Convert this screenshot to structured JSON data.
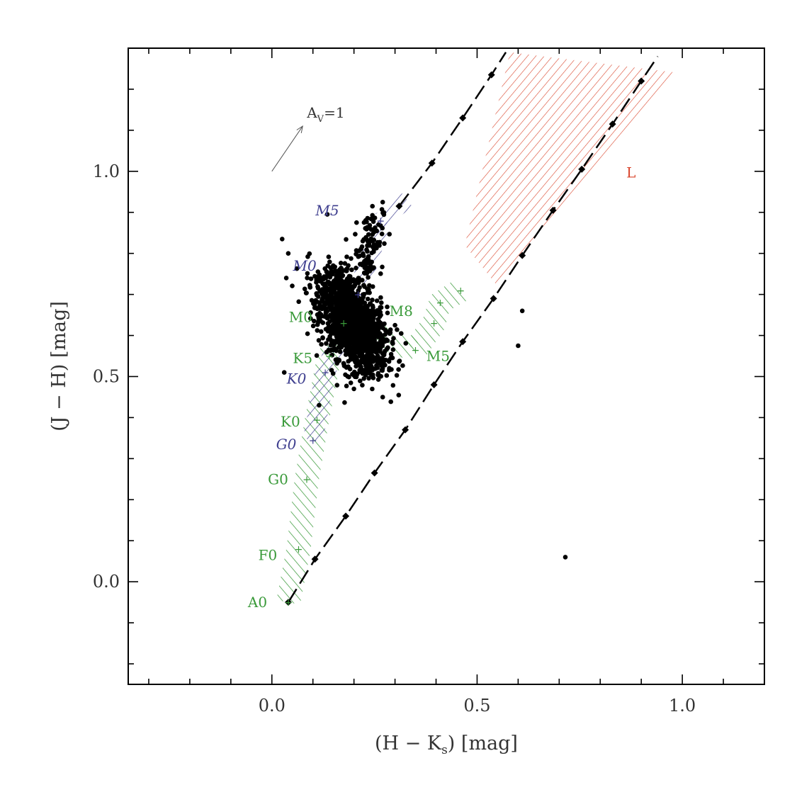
{
  "chart_data": {
    "type": "scatter",
    "xlabel_main": "(H − K",
    "xlabel_sub": "s",
    "xlabel_tail": ") [mag]",
    "ylabel": "(J − H) [mag]",
    "xlim": [
      -0.35,
      1.2
    ],
    "ylim": [
      -0.25,
      1.3
    ],
    "x_ticks": [
      0.0,
      0.5,
      1.0
    ],
    "x_tick_labels": [
      "0.0",
      "0.5",
      "1.0"
    ],
    "y_ticks": [
      0.0,
      0.5,
      1.0
    ],
    "y_tick_labels": [
      "0.0",
      "0.5",
      "1.0"
    ],
    "grid": false,
    "colors": {
      "points": "#000000",
      "dwarf": "#3a9a3a",
      "giant": "#3f3f8f",
      "l_dwarf": "#d9442b",
      "reddening": "#000000",
      "axis": "#000000",
      "text": "#333333"
    },
    "reddening_vector": {
      "label_main": "A",
      "label_sub": "V",
      "label_tail": "=1",
      "from": [
        0.0,
        1.0
      ],
      "to": [
        0.075,
        1.11
      ]
    },
    "reddening_lines": [
      {
        "name": "",
        "points": [
          [
            0.04,
            -0.05
          ],
          [
            0.105,
            0.055
          ],
          [
            0.18,
            0.16
          ],
          [
            0.25,
            0.265
          ],
          [
            0.325,
            0.37
          ],
          [
            0.395,
            0.48
          ],
          [
            0.465,
            0.585
          ],
          [
            0.54,
            0.69
          ],
          [
            0.61,
            0.795
          ],
          [
            0.685,
            0.905
          ],
          [
            0.755,
            1.005
          ],
          [
            0.83,
            1.115
          ],
          [
            0.9,
            1.22
          ],
          [
            0.94,
            1.28
          ]
        ]
      },
      {
        "name": "",
        "points": [
          [
            0.31,
            0.915
          ],
          [
            0.39,
            1.02
          ],
          [
            0.465,
            1.13
          ],
          [
            0.535,
            1.235
          ],
          [
            0.57,
            1.29
          ]
        ]
      }
    ],
    "dwarf_sequence": [
      {
        "label": "A0",
        "x": 0.04,
        "y": -0.05
      },
      {
        "label": "F0",
        "x": 0.065,
        "y": 0.08
      },
      {
        "label": "G0",
        "x": 0.085,
        "y": 0.25
      },
      {
        "label": "K0",
        "x": 0.11,
        "y": 0.395
      },
      {
        "label": "K5",
        "x": 0.14,
        "y": 0.55
      },
      {
        "label": "M0",
        "x": 0.175,
        "y": 0.63
      },
      {
        "label": "M5",
        "x": 0.35,
        "y": 0.565
      },
      {
        "label": "",
        "x": 0.395,
        "y": 0.63
      },
      {
        "label": "M8",
        "x": 0.41,
        "y": 0.68
      },
      {
        "label": "",
        "x": 0.46,
        "y": 0.71
      }
    ],
    "giant_sequence": [
      {
        "label": "G0",
        "x": 0.1,
        "y": 0.345
      },
      {
        "label": "K0",
        "x": 0.13,
        "y": 0.51
      },
      {
        "label": "M0",
        "x": 0.21,
        "y": 0.7
      },
      {
        "label": "M5",
        "x": 0.265,
        "y": 0.88
      }
    ],
    "l_dwarf_region": {
      "label": "L",
      "polygon": [
        [
          0.47,
          0.82
        ],
        [
          0.58,
          1.29
        ],
        [
          0.99,
          1.24
        ],
        [
          0.55,
          0.72
        ]
      ]
    },
    "isolated_points": [
      [
        0.025,
        0.835
      ],
      [
        0.04,
        0.8
      ],
      [
        0.035,
        0.74
      ],
      [
        0.03,
        0.51
      ],
      [
        0.115,
        0.43
      ],
      [
        0.135,
        0.895
      ],
      [
        0.27,
        0.925
      ],
      [
        0.245,
        0.915
      ],
      [
        0.26,
        0.87
      ],
      [
        0.3,
        0.625
      ],
      [
        0.27,
        0.45
      ],
      [
        0.2,
        0.47
      ],
      [
        0.61,
        0.66
      ],
      [
        0.6,
        0.575
      ],
      [
        0.715,
        0.06
      ],
      [
        0.315,
        0.605
      ]
    ],
    "clusters": [
      {
        "cx": 0.2,
        "cy": 0.62,
        "sx": 0.04,
        "sy": 0.055,
        "rho": -0.45,
        "n": 1400
      },
      {
        "cx": 0.235,
        "cy": 0.82,
        "sx": 0.018,
        "sy": 0.045,
        "rho": 0.3,
        "n": 110
      },
      {
        "cx": 0.165,
        "cy": 0.7,
        "sx": 0.03,
        "sy": 0.04,
        "rho": -0.3,
        "n": 250
      }
    ]
  }
}
